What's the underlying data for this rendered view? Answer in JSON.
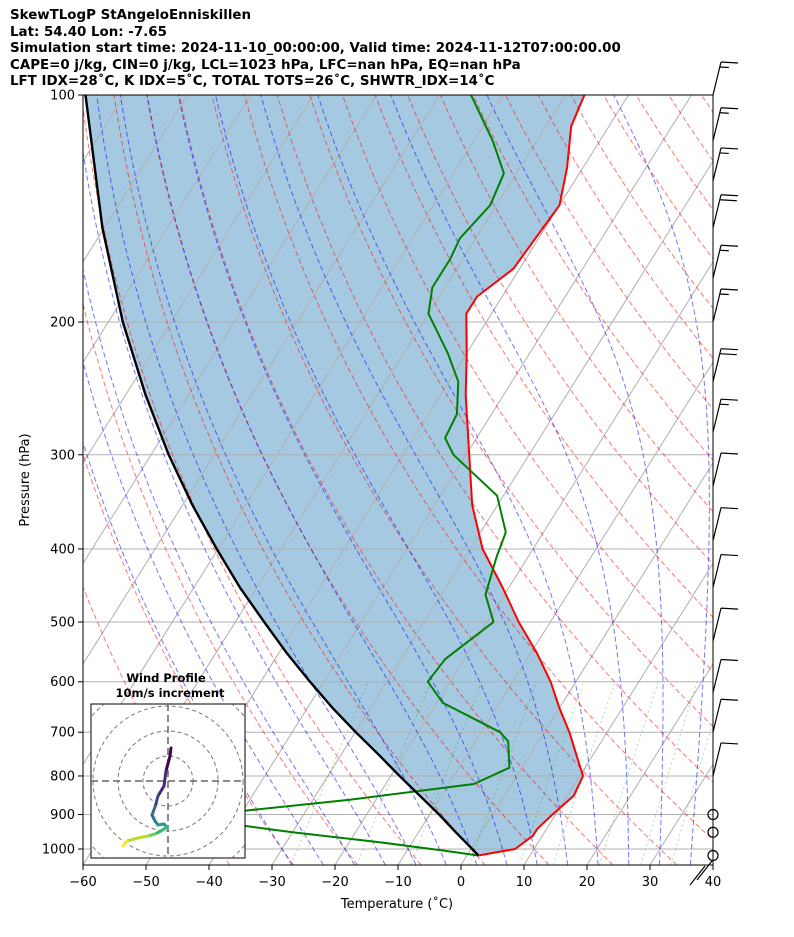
{
  "title_lines": [
    "SkewTLogP StAngeloEnniskillen",
    "Lat: 54.40   Lon: -7.65",
    "Simulation start time: 2024-11-10_00:00:00, Valid time: 2024-11-12T07:00:00.00",
    "CAPE=0 j/kg, CIN=0 j/kg, LCL=1023 hPa, LFC=nan hPa, EQ=nan hPa",
    "LFT IDX=28˚C, K IDX=5˚C, TOTAL TOTS=26˚C, SHWTR_IDX=14˚C"
  ],
  "chart_data": {
    "type": "line",
    "subtype": "skew-t log-p",
    "xlabel": "Temperature (˚C)",
    "ylabel": "Pressure (hPa)",
    "xlim": [
      -60,
      40
    ],
    "ylim": [
      1050,
      100
    ],
    "skew_deg_per_decade": 75,
    "x_ticks": [
      "−60",
      "−50",
      "−40",
      "−30",
      "−20",
      "−10",
      "0",
      "10",
      "20",
      "30",
      "40"
    ],
    "x_tick_values": [
      -60,
      -50,
      -40,
      -30,
      -20,
      -10,
      0,
      10,
      20,
      30,
      40
    ],
    "y_ticks": [
      "100",
      "200",
      "300",
      "400",
      "500",
      "600",
      "700",
      "800",
      "900",
      "1000"
    ],
    "y_tick_values": [
      100,
      200,
      300,
      400,
      500,
      600,
      700,
      800,
      900,
      1000
    ],
    "grid": true,
    "series": [
      {
        "name": "temperature",
        "color": "#ff0000",
        "points": [
          [
            1020,
            1.8
          ],
          [
            1000,
            7
          ],
          [
            960,
            8.5
          ],
          [
            940,
            8.5
          ],
          [
            900,
            9.5
          ],
          [
            850,
            11
          ],
          [
            800,
            10.5
          ],
          [
            760,
            8
          ],
          [
            700,
            4
          ],
          [
            650,
            0
          ],
          [
            600,
            -4
          ],
          [
            550,
            -9
          ],
          [
            500,
            -15
          ],
          [
            450,
            -21
          ],
          [
            400,
            -28
          ],
          [
            350,
            -34
          ],
          [
            300,
            -39.5
          ],
          [
            250,
            -46
          ],
          [
            220,
            -50
          ],
          [
            195,
            -54
          ],
          [
            185,
            -54
          ],
          [
            170,
            -51
          ],
          [
            140,
            -50
          ],
          [
            125,
            -52.5
          ],
          [
            110,
            -56
          ],
          [
            100,
            -57
          ]
        ]
      },
      {
        "name": "dewpoint",
        "color": "#008000",
        "points": [
          [
            1020,
            1.8
          ],
          [
            1005,
            -4
          ],
          [
            980,
            -15
          ],
          [
            950,
            -30
          ],
          [
            930,
            -39
          ],
          [
            900,
            -45
          ],
          [
            860,
            -24
          ],
          [
            820,
            -6
          ],
          [
            780,
            -2
          ],
          [
            720,
            -4.8
          ],
          [
            700,
            -7
          ],
          [
            640,
            -19
          ],
          [
            600,
            -23.5
          ],
          [
            560,
            -23
          ],
          [
            500,
            -19
          ],
          [
            460,
            -23
          ],
          [
            410,
            -25
          ],
          [
            380,
            -26
          ],
          [
            340,
            -31
          ],
          [
            300,
            -42
          ],
          [
            285,
            -45
          ],
          [
            265,
            -45.5
          ],
          [
            240,
            -48.5
          ],
          [
            220,
            -53
          ],
          [
            195,
            -60
          ],
          [
            180,
            -62
          ],
          [
            165,
            -62
          ],
          [
            155,
            -62.5
          ],
          [
            140,
            -61
          ],
          [
            127,
            -62
          ],
          [
            115,
            -67
          ],
          [
            100,
            -75
          ]
        ]
      },
      {
        "name": "parcel",
        "color": "#000000",
        "points": [
          [
            1020,
            1.8
          ],
          [
            1000,
            0.2
          ],
          [
            950,
            -4.1
          ],
          [
            900,
            -8.5
          ],
          [
            850,
            -13.4
          ],
          [
            800,
            -18.6
          ],
          [
            750,
            -24
          ],
          [
            700,
            -29.9
          ],
          [
            650,
            -36
          ],
          [
            600,
            -42.2
          ],
          [
            550,
            -48.7
          ],
          [
            500,
            -55.4
          ],
          [
            450,
            -62.7
          ],
          [
            400,
            -70.2
          ],
          [
            350,
            -78.4
          ],
          [
            300,
            -87.2
          ],
          [
            250,
            -96.8
          ],
          [
            200,
            -107.7
          ],
          [
            150,
            -120.3
          ],
          [
            100,
            -136.2
          ]
        ]
      }
    ],
    "wind_barbs": [
      {
        "p": 100,
        "speed_kt": 15
      },
      {
        "p": 115,
        "speed_kt": 15
      },
      {
        "p": 130,
        "speed_kt": 15
      },
      {
        "p": 150,
        "speed_kt": 20
      },
      {
        "p": 175,
        "speed_kt": 15
      },
      {
        "p": 200,
        "speed_kt": 15
      },
      {
        "p": 240,
        "speed_kt": 20
      },
      {
        "p": 280,
        "speed_kt": 15
      },
      {
        "p": 330,
        "speed_kt": 10
      },
      {
        "p": 390,
        "speed_kt": 10
      },
      {
        "p": 450,
        "speed_kt": 10
      },
      {
        "p": 530,
        "speed_kt": 10
      },
      {
        "p": 620,
        "speed_kt": 10
      },
      {
        "p": 700,
        "speed_kt": 10
      },
      {
        "p": 800,
        "speed_kt": 10
      },
      {
        "p": 900,
        "speed_kt": 0
      },
      {
        "p": 950,
        "speed_kt": 0
      },
      {
        "p": 1020,
        "speed_kt": 0
      }
    ],
    "inset": {
      "title": "Wind Profile",
      "subtitle": "10m/s increment",
      "hodograph_points": [
        [
          0.3,
          3.3
        ],
        [
          0.2,
          2.5
        ],
        [
          -0.2,
          1.0
        ],
        [
          -0.4,
          -0.5
        ],
        [
          -1.0,
          -1.5
        ],
        [
          -1.3,
          -2.6
        ],
        [
          -1.6,
          -3.4
        ],
        [
          -1.3,
          -4.0
        ],
        [
          -1.0,
          -4.4
        ],
        [
          -0.4,
          -4.3
        ],
        [
          -0.1,
          -4.6
        ],
        [
          -0.7,
          -5.0
        ],
        [
          -1.3,
          -5.3
        ],
        [
          -2.0,
          -5.5
        ],
        [
          -3.0,
          -5.7
        ],
        [
          -4.1,
          -6.0
        ],
        [
          -4.5,
          -6.5
        ]
      ]
    }
  }
}
